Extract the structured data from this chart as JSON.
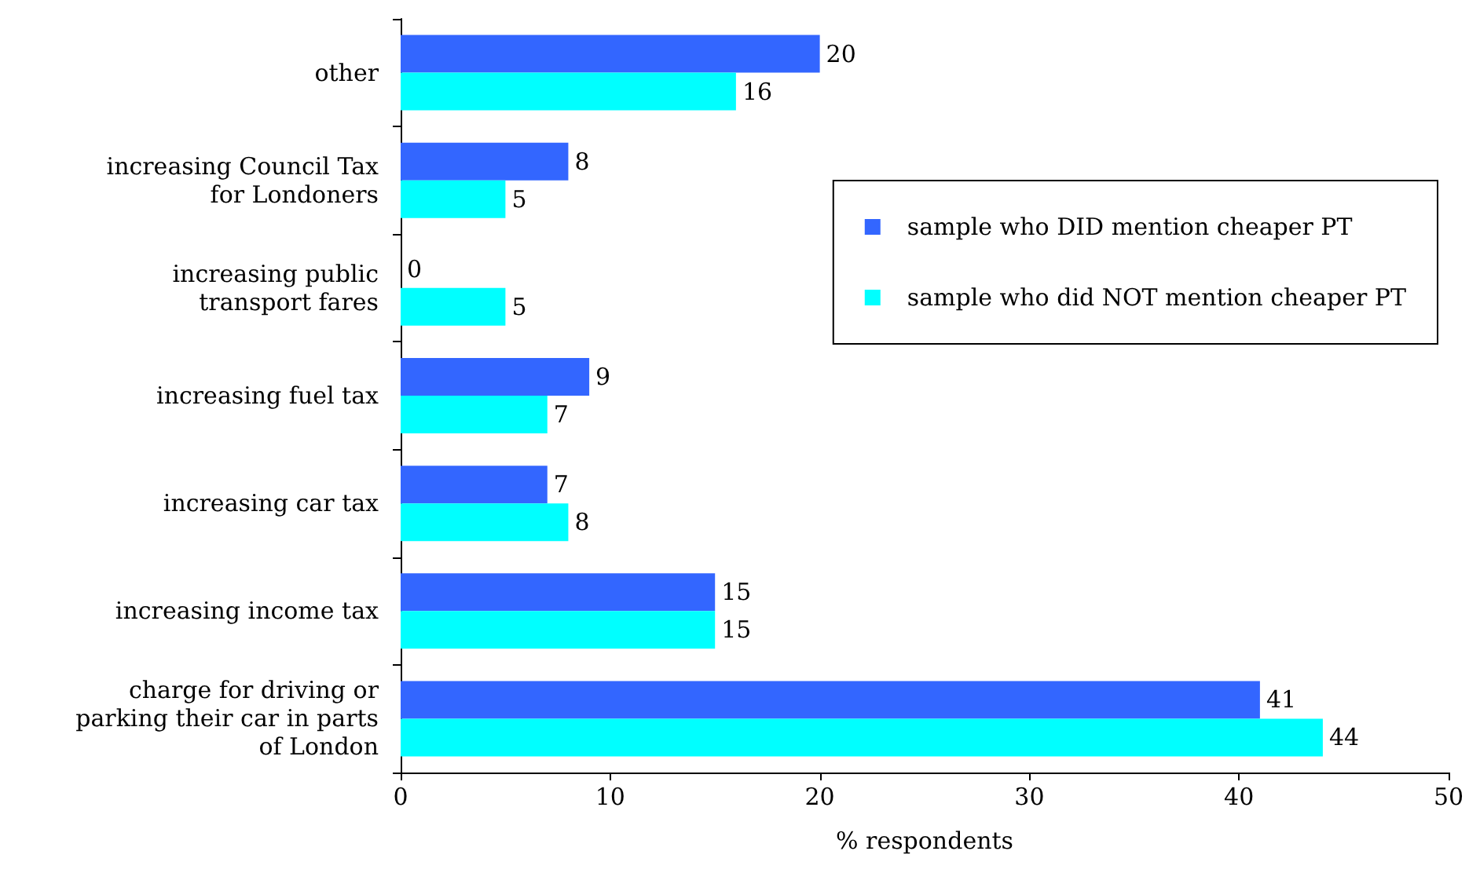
{
  "chart_data": {
    "type": "bar",
    "orientation": "horizontal",
    "xlabel": "% respondents",
    "categories": [
      "other",
      "increasing Council Tax\nfor Londoners",
      "increasing public\ntransport fares",
      "increasing fuel tax",
      "increasing car tax",
      "increasing income tax",
      "charge for driving or\nparking their car in parts\nof London"
    ],
    "series": [
      {
        "name": "sample who DID mention cheaper PT",
        "color": "#3366ff",
        "values": [
          20,
          8,
          0,
          9,
          7,
          15,
          41
        ]
      },
      {
        "name": "sample who did NOT mention cheaper PT",
        "color": "#00ffff",
        "values": [
          16,
          5,
          5,
          7,
          8,
          15,
          44
        ]
      }
    ],
    "xlim": [
      0,
      50
    ],
    "xticks": [
      0,
      10,
      20,
      30,
      40,
      50
    ],
    "data_labels": true,
    "grid": false,
    "legend": "top right"
  }
}
